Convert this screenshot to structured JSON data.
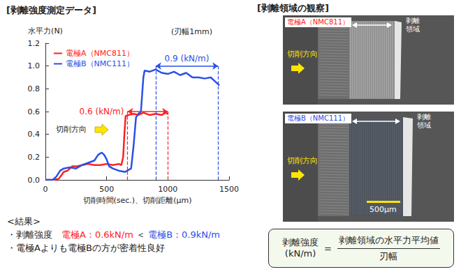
{
  "chart_data": {
    "type": "line",
    "title": "[剥離強度測定データ]",
    "subtitle": "(刃幅1mm)",
    "x_label": "切削時間(sec.)、切削距離(μm)",
    "y_label": "水平力(N)",
    "xlim": [
      0,
      1500
    ],
    "xticks": [
      0,
      500,
      1000,
      1500
    ],
    "ylim": [
      0,
      1.2
    ],
    "yticks": [
      {
        "value": 0,
        "label": "0.0"
      },
      {
        "value": 0.2,
        "label": "0.2"
      },
      {
        "value": 0.4,
        "label": "0.4"
      },
      {
        "value": 0.6,
        "label": "0.6"
      },
      {
        "value": 0.8,
        "label": "0.8"
      },
      {
        "value": 1.0,
        "label": "1.0"
      },
      {
        "value": 1.2,
        "label": "1.2"
      }
    ],
    "grid": false,
    "legend": "upper left",
    "series": [
      {
        "name": "電極A（NMC811）",
        "color": "#ff2020",
        "x": [
          0,
          60,
          110,
          130,
          150,
          180,
          200,
          220,
          260,
          300,
          350,
          400,
          450,
          500,
          550,
          600,
          620,
          635,
          645,
          655,
          680,
          720,
          760,
          800,
          850,
          900,
          950,
          980,
          1000
        ],
        "values": [
          0,
          0,
          0.01,
          0.04,
          0.07,
          0.08,
          0.1,
          0.12,
          0.12,
          0.13,
          0.14,
          0.13,
          0.13,
          0.14,
          0.13,
          0.14,
          0.13,
          0.2,
          0.4,
          0.56,
          0.57,
          0.58,
          0.57,
          0.59,
          0.57,
          0.58,
          0.57,
          0.59,
          0.58
        ]
      },
      {
        "name": "電極B（NMC111）",
        "color": "#2a4fe8",
        "x": [
          0,
          60,
          90,
          120,
          150,
          200,
          250,
          300,
          350,
          400,
          430,
          460,
          480,
          500,
          520,
          550,
          600,
          650,
          700,
          720,
          740,
          760,
          780,
          790,
          800,
          810,
          850,
          900,
          950,
          1000,
          1050,
          1100,
          1150,
          1200,
          1250,
          1300,
          1350,
          1380,
          1420
        ],
        "values": [
          0,
          0,
          0.03,
          0.08,
          0.1,
          0.11,
          0.1,
          0.13,
          0.15,
          0.17,
          0.22,
          0.24,
          0.22,
          0.18,
          0.12,
          0.1,
          0.08,
          0.07,
          0.1,
          0.3,
          0.55,
          0.58,
          0.6,
          0.75,
          0.9,
          0.96,
          0.95,
          0.97,
          0.94,
          0.93,
          0.95,
          0.92,
          0.94,
          0.9,
          0.9,
          0.89,
          0.9,
          0.87,
          0.83
        ]
      }
    ],
    "annotations": [
      {
        "text": "0.6 (kN/m)",
        "series": "電極A（NMC811）",
        "range": [
          670,
          1000
        ],
        "level": 0.6
      },
      {
        "text": "0.9 (kN/m)",
        "series": "電極B（NMC111）",
        "range": [
          900,
          1410
        ],
        "level": 1.0
      }
    ],
    "direction_label": "切削方向"
  },
  "results": {
    "heading": "<結果>",
    "lines": [
      [
        {
          "text": "・剥離強度　"
        },
        {
          "text": "電極A：0.6kN/m",
          "color": "#ff2020"
        },
        {
          "text": " ＜ "
        },
        {
          "text": "電極B：0.9kN/m",
          "color": "#2a4fe8"
        }
      ],
      [
        {
          "text": "・電極Aよりも電極Bの方が密着性良好"
        }
      ]
    ]
  },
  "observation": {
    "title": "[剥離領域の観察]",
    "panels": [
      {
        "label": "電極A（NMC811）",
        "label_color": "#ff2020",
        "region_label": "剥離領域",
        "direction_label": "切削方向"
      },
      {
        "label": "電極B（NMC111）",
        "label_color": "#2a4fe8",
        "region_label": "剥離領域",
        "direction_label": "切削方向",
        "scale_bar": "500μm"
      }
    ]
  },
  "formula": {
    "lhs": [
      "剥離強度",
      "(kN/m)"
    ],
    "operator": "=",
    "numerator": "剥離領域の水平力平均値",
    "denominator": "刃幅"
  }
}
